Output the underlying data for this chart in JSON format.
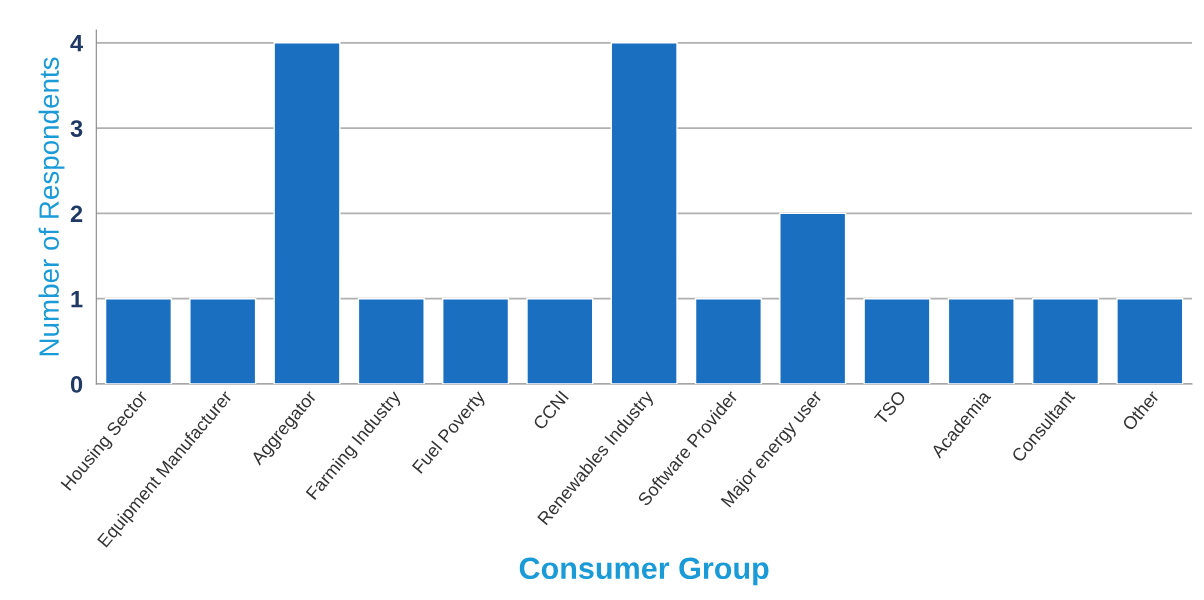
{
  "chart_data": {
    "type": "bar",
    "xlabel": "Consumer Group",
    "ylabel": "Number of Respondents",
    "categories": [
      "Housing Sector",
      "Equipment Manufacturer",
      "Aggregator",
      "Farming Industry",
      "Fuel Poverty",
      "CCNI",
      "Renewables Industry",
      "Software Provider",
      "Major energy user",
      "TSO",
      "Academia",
      "Consultant",
      "Other"
    ],
    "values": [
      1,
      1,
      4,
      1,
      1,
      1,
      4,
      1,
      2,
      1,
      1,
      1,
      1
    ],
    "color": "#1b6fc0",
    "ylim": [
      0,
      4.15
    ],
    "yticks": [
      0,
      1,
      2,
      3,
      4
    ],
    "grid": "y",
    "legend": false
  }
}
